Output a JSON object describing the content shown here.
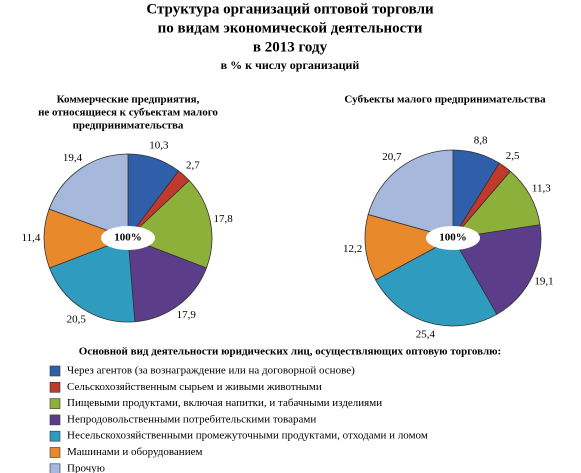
{
  "header": {
    "title_lines": [
      "Структура организаций оптовой торговли",
      "по видам экономической деятельности",
      "в 2013 году"
    ],
    "subtitle": "в % к числу организаций"
  },
  "chart_data": [
    {
      "type": "pie",
      "title_lines": [
        "Коммерческие предприятия,",
        "не относящиеся к субъектам малого",
        "предпринимательства"
      ],
      "center_label": "100%",
      "values": [
        10.3,
        2.7,
        17.8,
        17.9,
        20.5,
        11.4,
        19.4
      ],
      "value_labels": [
        "10,3",
        "2,7",
        "17,8",
        "17,9",
        "20,5",
        "11,4",
        "19,4"
      ],
      "colors": [
        "#2e5fa8",
        "#c0392b",
        "#8db03a",
        "#5b3d8a",
        "#2e9bbf",
        "#e8892b",
        "#a6b8dc"
      ]
    },
    {
      "type": "pie",
      "title_lines": [
        "Субъекты малого предпринимательства"
      ],
      "center_label": "100%",
      "values": [
        8.8,
        2.5,
        11.3,
        19.1,
        25.4,
        12.2,
        20.7
      ],
      "value_labels": [
        "8,8",
        "2,5",
        "11,3",
        "19,1",
        "25,4",
        "12,2",
        "20,7"
      ],
      "colors": [
        "#2e5fa8",
        "#c0392b",
        "#8db03a",
        "#5b3d8a",
        "#2e9bbf",
        "#e8892b",
        "#a6b8dc"
      ]
    }
  ],
  "legend": {
    "title": "Основной вид деятельности юридических лиц, осуществляющих оптовую торговлю:",
    "items": [
      "Через агентов (за вознаграждение или на договорной основе)",
      "Сельскохозяйственным сырьем и живыми животными",
      "Пищевыми продуктами, включая напитки, и табачными изделиями",
      "Непродовольственными потребительскими товарами",
      "Несельскохозяйственными промежуточными продуктами, отходами и ломом",
      "Машинами и оборудованием",
      "Прочую"
    ]
  }
}
